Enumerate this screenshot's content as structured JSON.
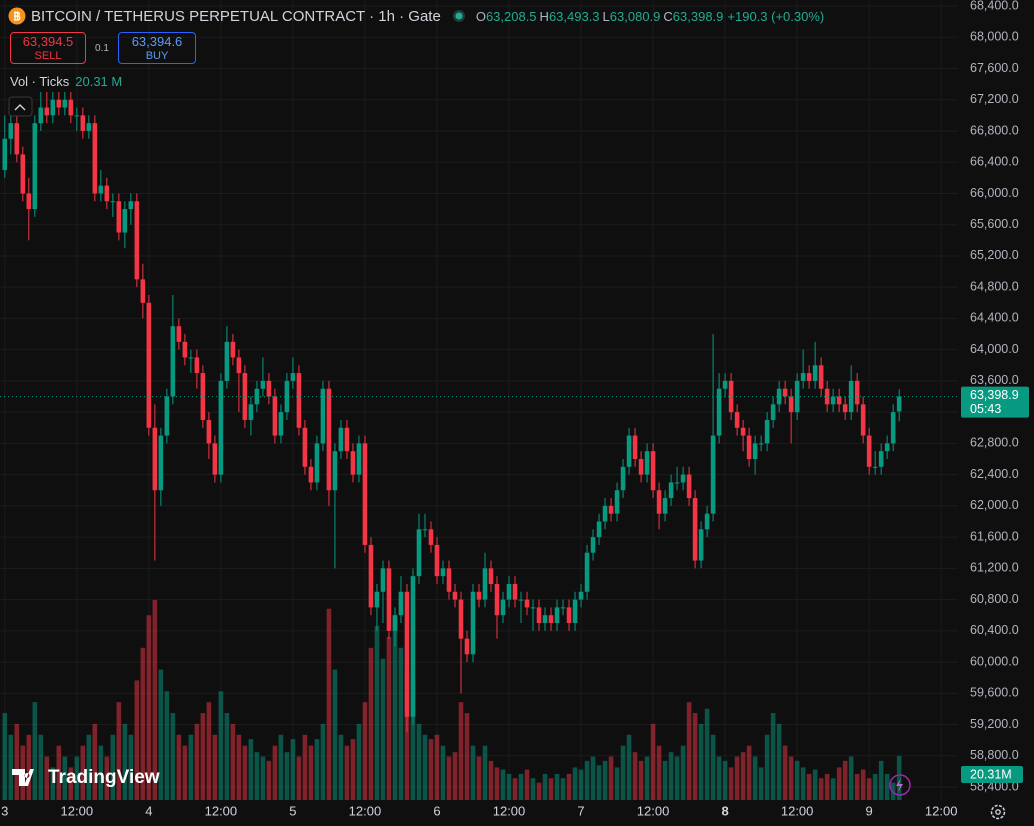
{
  "chart_data": {
    "type": "candlestick",
    "title": "BITCOIN / TETHERUS PERPETUAL CONTRACT · 1h · Gate",
    "ohlc_legend": [
      {
        "key": "O",
        "value": "63,208.5"
      },
      {
        "key": "H",
        "value": "63,493.3"
      },
      {
        "key": "L",
        "value": "63,080.9"
      },
      {
        "key": "C",
        "value": "63,398.9"
      }
    ],
    "change": "+190.3 (+0.30%)",
    "toolbar": {
      "sell_price": "63,394.5",
      "sell": "SELL",
      "quantity": "0.1",
      "buy_price": "63,394.6",
      "buy": "BUY"
    },
    "volume_title": "Vol · Ticks",
    "volume_legend": "20.31 M",
    "volume_axis_label": "20.31M",
    "last_price_label": "63,398.9",
    "countdown": "05:43",
    "watermark": "TradingView",
    "up_color": "#089981",
    "down_color": "#f23645",
    "grid": true,
    "xlim": [
      -0.8,
      158.8
    ],
    "xticks": [
      {
        "value": 0,
        "label": "3"
      },
      {
        "value": 12,
        "label": "12:00"
      },
      {
        "value": 24,
        "label": "4"
      },
      {
        "value": 36,
        "label": "12:00"
      },
      {
        "value": 48,
        "label": "5"
      },
      {
        "value": 60,
        "label": "12:00"
      },
      {
        "value": 72,
        "label": "6"
      },
      {
        "value": 84,
        "label": "12:00"
      },
      {
        "value": 96,
        "label": "7"
      },
      {
        "value": 108,
        "label": "12:00"
      },
      {
        "value": 120,
        "label": "8"
      },
      {
        "value": 132,
        "label": "12:00"
      },
      {
        "value": 144,
        "label": "9"
      },
      {
        "value": 156,
        "label": "12:00"
      }
    ],
    "ylim": [
      58234,
      68477
    ],
    "yticks": [
      {
        "value": 58400,
        "label": "58,400.0"
      },
      {
        "value": 58800,
        "label": "58,800.0"
      },
      {
        "value": 59200,
        "label": "59,200.0"
      },
      {
        "value": 59600,
        "label": "59,600.0"
      },
      {
        "value": 60000,
        "label": "60,000.0"
      },
      {
        "value": 60400,
        "label": "60,400.0"
      },
      {
        "value": 60800,
        "label": "60,800.0"
      },
      {
        "value": 61200,
        "label": "61,200.0"
      },
      {
        "value": 61600,
        "label": "61,600.0"
      },
      {
        "value": 62000,
        "label": "62,000.0"
      },
      {
        "value": 62400,
        "label": "62,400.0"
      },
      {
        "value": 62800,
        "label": "62,800.0"
      },
      {
        "value": 63200,
        "label": "63,200.0"
      },
      {
        "value": 63600,
        "label": "63,600.0"
      },
      {
        "value": 64000,
        "label": "64,000.0"
      },
      {
        "value": 64400,
        "label": "64,400.0"
      },
      {
        "value": 64800,
        "label": "64,800.0"
      },
      {
        "value": 65200,
        "label": "65,200.0"
      },
      {
        "value": 65600,
        "label": "65,600.0"
      },
      {
        "value": 66000,
        "label": "66,000.0"
      },
      {
        "value": 66400,
        "label": "66,400.0"
      },
      {
        "value": 66800,
        "label": "66,800.0"
      },
      {
        "value": 67200,
        "label": "67,200.0"
      },
      {
        "value": 67600,
        "label": "67,600.0"
      },
      {
        "value": 68000,
        "label": "68,000.0"
      },
      {
        "value": 68400,
        "label": "68,400.0"
      }
    ],
    "ohlc": [
      [
        66300,
        67000,
        66200,
        66700
      ],
      [
        66700,
        67100,
        66500,
        66900
      ],
      [
        66900,
        67000,
        66400,
        66500
      ],
      [
        66500,
        66600,
        65900,
        66000
      ],
      [
        66000,
        66200,
        65400,
        65800
      ],
      [
        65800,
        67000,
        65700,
        66900
      ],
      [
        66900,
        67300,
        66800,
        67100
      ],
      [
        67100,
        67300,
        66900,
        67000
      ],
      [
        67000,
        67300,
        66900,
        67200
      ],
      [
        67200,
        67300,
        67000,
        67100
      ],
      [
        67100,
        67300,
        67000,
        67200
      ],
      [
        67200,
        67300,
        66900,
        67000
      ],
      [
        67000,
        67100,
        66800,
        67000
      ],
      [
        67000,
        67100,
        66700,
        66800
      ],
      [
        66800,
        67000,
        66700,
        66900
      ],
      [
        66900,
        67000,
        65900,
        66000
      ],
      [
        66000,
        66300,
        65900,
        66100
      ],
      [
        66100,
        66200,
        65800,
        65900
      ],
      [
        65900,
        66000,
        65700,
        65900
      ],
      [
        65900,
        66000,
        65400,
        65500
      ],
      [
        65500,
        65900,
        65300,
        65800
      ],
      [
        65800,
        66000,
        65600,
        65900
      ],
      [
        65900,
        66000,
        64800,
        64900
      ],
      [
        64900,
        65100,
        64400,
        64600
      ],
      [
        64600,
        64700,
        62900,
        63000
      ],
      [
        63000,
        63300,
        61300,
        62200
      ],
      [
        62200,
        63000,
        62000,
        62900
      ],
      [
        62900,
        63500,
        62800,
        63400
      ],
      [
        63400,
        64700,
        63300,
        64300
      ],
      [
        64300,
        64400,
        64000,
        64100
      ],
      [
        64100,
        64200,
        63800,
        63900
      ],
      [
        63900,
        64000,
        63700,
        63900
      ],
      [
        63900,
        64000,
        63500,
        63700
      ],
      [
        63700,
        63800,
        63000,
        63100
      ],
      [
        63100,
        63200,
        62600,
        62800
      ],
      [
        62800,
        62900,
        62300,
        62400
      ],
      [
        62400,
        63700,
        62300,
        63600
      ],
      [
        63600,
        64300,
        63500,
        64100
      ],
      [
        64100,
        64200,
        63800,
        63900
      ],
      [
        63900,
        64000,
        63200,
        63700
      ],
      [
        63700,
        63800,
        63000,
        63100
      ],
      [
        63100,
        63400,
        62900,
        63300
      ],
      [
        63300,
        63600,
        63200,
        63500
      ],
      [
        63500,
        63900,
        63400,
        63600
      ],
      [
        63600,
        63700,
        63300,
        63400
      ],
      [
        63400,
        63500,
        62800,
        62900
      ],
      [
        62900,
        63300,
        62800,
        63200
      ],
      [
        63200,
        63700,
        63100,
        63600
      ],
      [
        63600,
        63900,
        63500,
        63700
      ],
      [
        63700,
        63800,
        62900,
        63000
      ],
      [
        63000,
        63100,
        62400,
        62500
      ],
      [
        62500,
        62600,
        62200,
        62300
      ],
      [
        62300,
        62900,
        62200,
        62800
      ],
      [
        62800,
        63600,
        62700,
        63500
      ],
      [
        63500,
        63600,
        62000,
        62200
      ],
      [
        62200,
        62800,
        61200,
        62700
      ],
      [
        62700,
        63100,
        62600,
        63000
      ],
      [
        63000,
        63100,
        62600,
        62700
      ],
      [
        62700,
        62800,
        62300,
        62400
      ],
      [
        62400,
        62900,
        62300,
        62800
      ],
      [
        62800,
        62900,
        61400,
        61500
      ],
      [
        61500,
        61600,
        60600,
        60700
      ],
      [
        60700,
        61000,
        60400,
        60900
      ],
      [
        60900,
        61300,
        60500,
        61200
      ],
      [
        61200,
        61300,
        60300,
        60400
      ],
      [
        60400,
        60700,
        60200,
        60600
      ],
      [
        60600,
        61100,
        60500,
        60900
      ],
      [
        60900,
        61000,
        59100,
        59300
      ],
      [
        59300,
        61200,
        59200,
        61100
      ],
      [
        61100,
        61900,
        61000,
        61700
      ],
      [
        61700,
        61900,
        61600,
        61700
      ],
      [
        61700,
        61800,
        61400,
        61500
      ],
      [
        61500,
        61600,
        61000,
        61100
      ],
      [
        61100,
        61300,
        61000,
        61200
      ],
      [
        61200,
        61300,
        60800,
        60900
      ],
      [
        60900,
        61000,
        60700,
        60800
      ],
      [
        60800,
        60900,
        59600,
        60300
      ],
      [
        60300,
        60400,
        60000,
        60100
      ],
      [
        60100,
        61000,
        60000,
        60900
      ],
      [
        60900,
        61000,
        60700,
        60800
      ],
      [
        60800,
        61400,
        60700,
        61200
      ],
      [
        61200,
        61300,
        60900,
        61000
      ],
      [
        61000,
        61100,
        60300,
        60600
      ],
      [
        60600,
        60900,
        60500,
        60800
      ],
      [
        60800,
        61100,
        60700,
        61000
      ],
      [
        61000,
        61100,
        60700,
        60800
      ],
      [
        60800,
        60900,
        60500,
        60800
      ],
      [
        60800,
        60900,
        60600,
        60700
      ],
      [
        60700,
        60800,
        60400,
        60700
      ],
      [
        60700,
        60800,
        60400,
        60500
      ],
      [
        60500,
        60700,
        60400,
        60600
      ],
      [
        60600,
        60700,
        60400,
        60500
      ],
      [
        60500,
        60800,
        60400,
        60700
      ],
      [
        60700,
        60800,
        60600,
        60700
      ],
      [
        60700,
        60800,
        60400,
        60500
      ],
      [
        60500,
        60900,
        60400,
        60800
      ],
      [
        60800,
        61000,
        60700,
        60900
      ],
      [
        60900,
        61500,
        60800,
        61400
      ],
      [
        61400,
        61700,
        61300,
        61600
      ],
      [
        61600,
        61900,
        61500,
        61800
      ],
      [
        61800,
        62100,
        61700,
        62000
      ],
      [
        62000,
        62100,
        61800,
        61900
      ],
      [
        61900,
        62300,
        61800,
        62200
      ],
      [
        62200,
        62600,
        62100,
        62500
      ],
      [
        62500,
        63000,
        62400,
        62900
      ],
      [
        62900,
        63000,
        62500,
        62600
      ],
      [
        62600,
        62700,
        62300,
        62400
      ],
      [
        62400,
        62800,
        62300,
        62700
      ],
      [
        62700,
        62800,
        62100,
        62200
      ],
      [
        62200,
        62300,
        61700,
        61900
      ],
      [
        61900,
        62200,
        61800,
        62100
      ],
      [
        62100,
        62400,
        62000,
        62300
      ],
      [
        62300,
        62500,
        62200,
        62300
      ],
      [
        62300,
        62500,
        62200,
        62400
      ],
      [
        62400,
        62500,
        62000,
        62100
      ],
      [
        62100,
        62200,
        61200,
        61300
      ],
      [
        61300,
        61800,
        61200,
        61700
      ],
      [
        61700,
        62000,
        61600,
        61900
      ],
      [
        61900,
        64200,
        61800,
        62900
      ],
      [
        62900,
        63700,
        62800,
        63500
      ],
      [
        63500,
        63700,
        63400,
        63600
      ],
      [
        63600,
        63700,
        63100,
        63200
      ],
      [
        63200,
        63300,
        62900,
        63000
      ],
      [
        63000,
        63100,
        62700,
        62900
      ],
      [
        62900,
        63000,
        62500,
        62600
      ],
      [
        62600,
        62900,
        62400,
        62800
      ],
      [
        62800,
        62900,
        62700,
        62800
      ],
      [
        62800,
        63200,
        62700,
        63100
      ],
      [
        63100,
        63400,
        63000,
        63300
      ],
      [
        63300,
        63600,
        63200,
        63500
      ],
      [
        63500,
        63600,
        63300,
        63400
      ],
      [
        63400,
        63500,
        62800,
        63200
      ],
      [
        63200,
        63700,
        63100,
        63600
      ],
      [
        63600,
        64000,
        63500,
        63700
      ],
      [
        63700,
        63800,
        63500,
        63600
      ],
      [
        63600,
        64100,
        63500,
        63800
      ],
      [
        63800,
        63900,
        63400,
        63500
      ],
      [
        63500,
        63600,
        63200,
        63300
      ],
      [
        63300,
        63500,
        63200,
        63400
      ],
      [
        63400,
        63500,
        63200,
        63300
      ],
      [
        63300,
        63400,
        63100,
        63200
      ],
      [
        63200,
        63800,
        63100,
        63600
      ],
      [
        63600,
        63700,
        63200,
        63300
      ],
      [
        63300,
        63400,
        62800,
        62900
      ],
      [
        62900,
        63000,
        62400,
        62500
      ],
      [
        62500,
        62700,
        62400,
        62500
      ],
      [
        62500,
        62800,
        62400,
        62700
      ],
      [
        62700,
        62900,
        62600,
        62800
      ],
      [
        62800,
        63300,
        62700,
        63200
      ],
      [
        63208.5,
        63493.3,
        63080.9,
        63398.9
      ]
    ],
    "volume": [
      40,
      30,
      35,
      25,
      30,
      45,
      30,
      20,
      15,
      25,
      20,
      15,
      20,
      25,
      30,
      35,
      25,
      20,
      30,
      45,
      35,
      30,
      55,
      70,
      85,
      92,
      60,
      50,
      40,
      30,
      25,
      30,
      35,
      40,
      45,
      30,
      50,
      40,
      35,
      30,
      25,
      28,
      22,
      20,
      18,
      25,
      30,
      22,
      28,
      20,
      30,
      25,
      28,
      35,
      88,
      60,
      30,
      25,
      28,
      35,
      45,
      70,
      80,
      65,
      75,
      85,
      70,
      60,
      55,
      35,
      30,
      28,
      30,
      25,
      20,
      22,
      45,
      40,
      25,
      20,
      25,
      18,
      15,
      14,
      12,
      10,
      12,
      14,
      10,
      8,
      12,
      10,
      12,
      10,
      12,
      15,
      14,
      18,
      20,
      16,
      18,
      20,
      15,
      25,
      30,
      22,
      18,
      20,
      35,
      25,
      18,
      22,
      20,
      25,
      45,
      40,
      35,
      42,
      30,
      20,
      18,
      15,
      20,
      22,
      25,
      20,
      15,
      30,
      40,
      35,
      25,
      20,
      18,
      15,
      12,
      14,
      10,
      12,
      10,
      15,
      18,
      20,
      12,
      14,
      10,
      12,
      18,
      12,
      8,
      20.31
    ]
  }
}
